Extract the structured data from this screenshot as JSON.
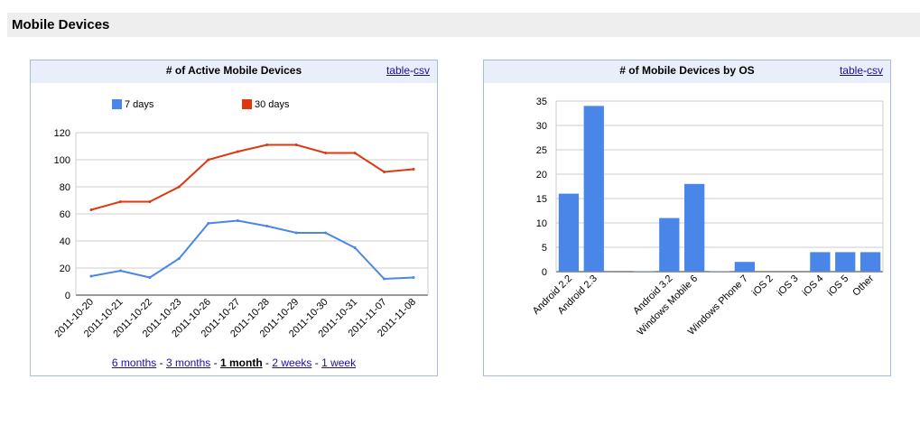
{
  "section": {
    "title": "Mobile Devices"
  },
  "links": {
    "table": "table",
    "dash": "-",
    "csv": "csv"
  },
  "left_panel": {
    "title": "# of Active Mobile Devices",
    "ranges": [
      {
        "label": "6 months",
        "current": false
      },
      {
        "label": "3 months",
        "current": false
      },
      {
        "label": "1 month",
        "current": true
      },
      {
        "label": "2 weeks",
        "current": false
      },
      {
        "label": "1 week",
        "current": false
      }
    ],
    "range_separator": "-"
  },
  "right_panel": {
    "title": "# of Mobile Devices by OS"
  },
  "chart_data": [
    {
      "type": "line",
      "title": "# of Active Mobile Devices",
      "x": [
        "2011-10-20",
        "2011-10-21",
        "2011-10-22",
        "2011-10-23",
        "2011-10-26",
        "2011-10-27",
        "2011-10-28",
        "2011-10-29",
        "2011-10-30",
        "2011-10-31",
        "2011-11-07",
        "2011-11-08"
      ],
      "series": [
        {
          "name": "7 days",
          "color": "#4a86e8",
          "values": [
            14,
            18,
            13,
            27,
            53,
            55,
            51,
            46,
            46,
            35,
            12,
            13
          ]
        },
        {
          "name": "30 days",
          "color": "#dc3912",
          "values": [
            63,
            69,
            69,
            80,
            100,
            106,
            111,
            111,
            105,
            105,
            91,
            93
          ]
        }
      ],
      "yticks": [
        0,
        20,
        40,
        60,
        80,
        100,
        120
      ],
      "ylim": [
        0,
        120
      ],
      "grid": true,
      "legend_position": "top"
    },
    {
      "type": "bar",
      "title": "# of Mobile Devices by OS",
      "categories": [
        "Android 2.2",
        "Android 2.3",
        "",
        "",
        "Android 3.2",
        "Windows Mobile 6",
        "",
        "Windows Phone 7",
        "iOS 2",
        "iOS 3",
        "iOS 4",
        "iOS 5",
        "Other"
      ],
      "values": [
        16,
        34,
        0,
        0.1,
        11,
        18,
        0.1,
        2,
        0,
        0,
        4,
        4,
        4
      ],
      "color": "#4a86e8",
      "yticks": [
        0,
        5,
        10,
        15,
        20,
        25,
        30,
        35
      ],
      "ylim": [
        0,
        35
      ],
      "grid": true
    }
  ]
}
